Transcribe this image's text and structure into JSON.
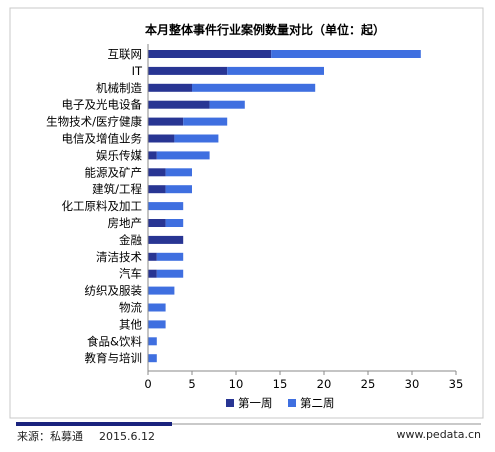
{
  "chart_data": {
    "type": "bar",
    "orientation": "horizontal",
    "stacked": true,
    "title": "本月整体事件行业案例数量对比（单位：起）",
    "categories": [
      "互联网",
      "IT",
      "机械制造",
      "电子及光电设备",
      "生物技术/医疗健康",
      "电信及增值业务",
      "娱乐传媒",
      "能源及矿产",
      "建筑/工程",
      "化工原料及加工",
      "房地产",
      "金融",
      "清洁技术",
      "汽车",
      "纺织及服装",
      "物流",
      "其他",
      "食品&饮料",
      "教育与培训"
    ],
    "series": [
      {
        "name": "第一周",
        "color": "#283593",
        "values": [
          14,
          9,
          5,
          7,
          4,
          3,
          1,
          2,
          2,
          0,
          2,
          4,
          1,
          1,
          0,
          0,
          0,
          0,
          0
        ]
      },
      {
        "name": "第二周",
        "color": "#3f6fe0",
        "values": [
          17,
          11,
          14,
          4,
          5,
          5,
          6,
          3,
          3,
          4,
          2,
          0,
          3,
          3,
          3,
          2,
          2,
          1,
          1
        ]
      }
    ],
    "xlim": [
      0,
      35
    ],
    "xticks": [
      0,
      5,
      10,
      15,
      20,
      25,
      30,
      35
    ],
    "grid": false,
    "legend_position": "bottom-center"
  },
  "footer": {
    "source": "来源：私募通",
    "date": "2015.6.12",
    "website": "www.pedata.cn"
  }
}
